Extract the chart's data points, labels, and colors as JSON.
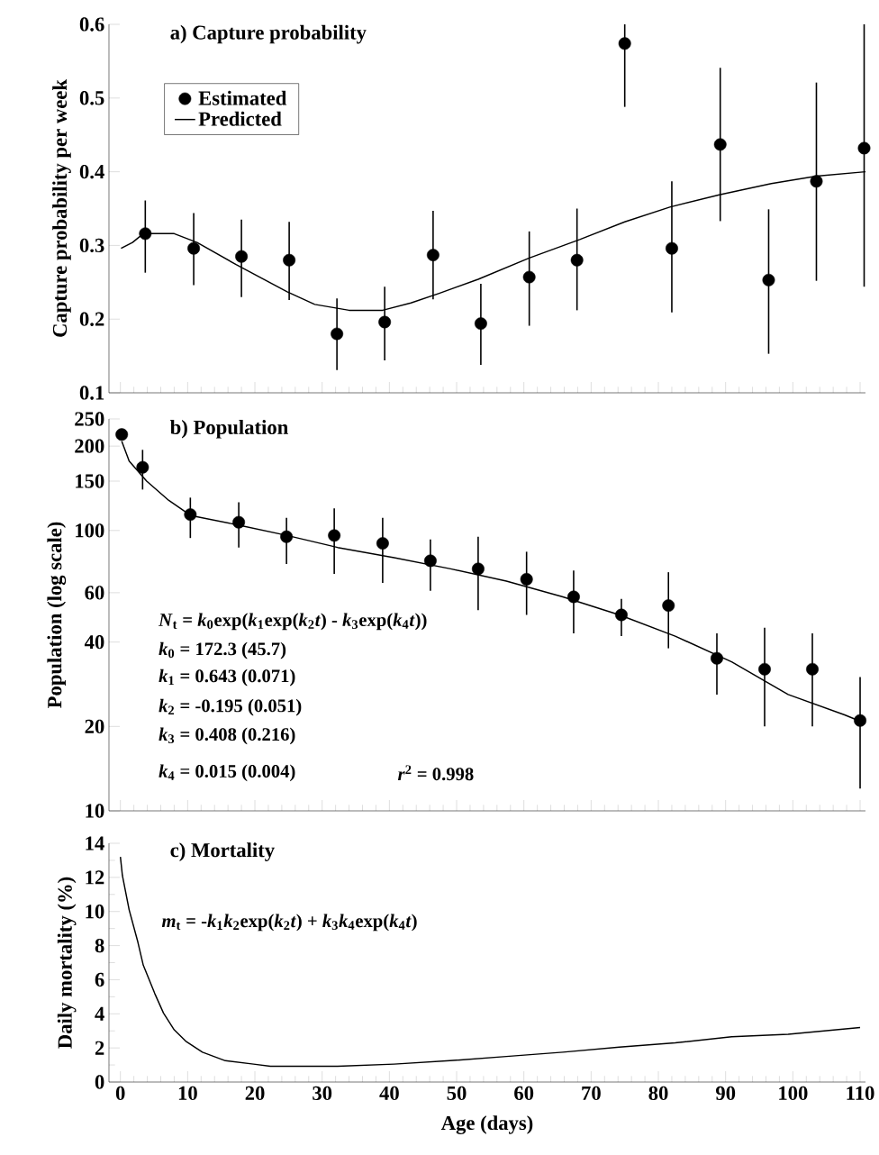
{
  "chart_data": [
    {
      "type": "scatter",
      "title": "a) Capture probability",
      "ylabel": "Capture probability per week",
      "xlim": [
        -1.7,
        110.8
      ],
      "xticks": [
        0,
        10,
        20,
        30,
        40,
        50,
        60,
        70,
        80,
        90,
        100,
        110
      ],
      "ylim": [
        0.1,
        0.6
      ],
      "yticks": [
        0.1,
        0.2,
        0.3,
        0.4,
        0.5,
        0.6
      ],
      "tick_labels": "y",
      "legend": "top left",
      "series": [
        {
          "name": "Estimated",
          "type": "scatter",
          "marker": "circle",
          "color": "#000000",
          "x": [
            3.7,
            10.9,
            18.0,
            25.1,
            32.2,
            39.3,
            46.5,
            53.6,
            60.8,
            67.9,
            75.0,
            82.0,
            89.2,
            96.4,
            103.5,
            110.6
          ],
          "values": [
            0.316,
            0.296,
            0.285,
            0.28,
            0.18,
            0.196,
            0.287,
            0.194,
            0.257,
            0.28,
            0.574,
            0.296,
            0.437,
            0.253,
            0.387,
            0.432
          ],
          "errors": [
            [
              0.263,
              0.361
            ],
            [
              0.246,
              0.344
            ],
            [
              0.23,
              0.335
            ],
            [
              0.226,
              0.332
            ],
            [
              0.131,
              0.228
            ],
            [
              0.144,
              0.244
            ],
            [
              0.227,
              0.347
            ],
            [
              0.138,
              0.248
            ],
            [
              0.191,
              0.319
            ],
            [
              0.212,
              0.35
            ],
            [
              0.488,
              0.6
            ],
            [
              0.209,
              0.387
            ],
            [
              0.333,
              0.541
            ],
            [
              0.153,
              0.349
            ],
            [
              0.252,
              0.521
            ],
            [
              0.244,
              0.6
            ]
          ]
        },
        {
          "name": "Predicted",
          "type": "line",
          "color": "#000000",
          "x": [
            0.1,
            1.8,
            3.4,
            8.0,
            11.4,
            17.2,
            24.8,
            28.9,
            34.0,
            39.0,
            43.2,
            47.4,
            53.2,
            60.8,
            68.3,
            75.0,
            81.7,
            89.2,
            96.8,
            103.5,
            110.8
          ],
          "values": [
            0.296,
            0.304,
            0.316,
            0.316,
            0.304,
            0.274,
            0.237,
            0.22,
            0.212,
            0.212,
            0.222,
            0.235,
            0.254,
            0.283,
            0.308,
            0.332,
            0.352,
            0.369,
            0.384,
            0.394,
            0.4
          ]
        }
      ]
    },
    {
      "type": "scatter",
      "title": "b) Population",
      "ylabel": "Population (log scale)",
      "log": "y",
      "xlim": [
        -1.7,
        110.8
      ],
      "xticks": [
        0,
        10,
        20,
        30,
        40,
        50,
        60,
        70,
        80,
        90,
        100,
        110
      ],
      "ylim": [
        10,
        250
      ],
      "yticks": [
        10,
        20,
        40,
        60,
        100,
        150,
        200,
        250
      ],
      "tick_labels": "y",
      "annotations": [
        "*N*$_{t}$ = *k*$_{0}$exp(*k*$_{1}$exp(*k*$_{2}$*t*) - *k*$_{3}$exp(*k*$_{4}$*t*))",
        "*k*$_{0}$ =  172.3 (45.7)",
        "*k*$_{1}$ =  0.643 (0.071)",
        "*k*$_{2}$ = -0.195 (0.051)",
        "*k*$_{3}$ =  0.408 (0.216)",
        "*k*$_{4}$ =  0.015 (0.004)",
        "*r*$^{2}$ = 0.998"
      ],
      "series": [
        {
          "type": "scatter",
          "marker": "circle",
          "color": "#000000",
          "x": [
            0.2,
            3.3,
            10.4,
            17.6,
            24.7,
            31.8,
            39.0,
            46.1,
            53.2,
            60.4,
            67.4,
            74.5,
            81.5,
            88.7,
            95.8,
            102.9,
            110.0
          ],
          "values": [
            220,
            168,
            114,
            107,
            95,
            96,
            90,
            78,
            73,
            67,
            58,
            50,
            54,
            35,
            32,
            32,
            21
          ],
          "errors": [
            null,
            [
              140,
              194
            ],
            [
              94,
              131
            ],
            [
              87,
              126
            ],
            [
              76,
              111
            ],
            [
              70,
              120
            ],
            [
              65,
              111
            ],
            [
              61,
              93
            ],
            [
              52,
              95
            ],
            [
              50,
              84
            ],
            [
              43,
              72
            ],
            [
              42,
              57
            ],
            [
              38,
              71
            ],
            [
              26,
              43
            ],
            [
              20,
              45
            ],
            [
              20,
              43
            ],
            [
              12,
              30
            ]
          ]
        },
        {
          "type": "line",
          "color": "#000000",
          "x": [
            0.2,
            1.3,
            3.9,
            7.2,
            10.5,
            17.2,
            24.8,
            32.3,
            40.7,
            49.1,
            57.4,
            65.8,
            74.2,
            82.5,
            90.9,
            99.3,
            107.7,
            110.8
          ],
          "values": [
            208,
            177,
            150,
            128,
            113,
            105,
            96,
            87,
            80,
            73,
            66,
            58,
            50,
            42,
            34,
            26,
            22,
            20.5
          ]
        }
      ]
    },
    {
      "type": "line",
      "title": "c) Mortality",
      "ylabel": "Daily mortality (%)",
      "xlabel": "Age (days)",
      "xlim": [
        -1.7,
        110.8
      ],
      "xticks": [
        0,
        10,
        20,
        30,
        40,
        50,
        60,
        70,
        80,
        90,
        100,
        110
      ],
      "ylim": [
        0,
        14
      ],
      "yticks": [
        0,
        2,
        4,
        6,
        8,
        10,
        12,
        14
      ],
      "annotations": [
        "*m*$_{t}$ = -*k*$_{1}$*k*$_{2}$exp(*k*$_{2}$*t*) + *k*$_{3}$*k*$_{4}$exp(*k*$_{4}$*t*)"
      ],
      "series": [
        {
          "type": "line",
          "color": "#000000",
          "x": [
            0,
            0.3,
            1.3,
            2.6,
            3.4,
            5.1,
            6.4,
            8.0,
            9.7,
            12.2,
            15.6,
            19.8,
            22.3,
            32.3,
            40.7,
            49.0,
            57.4,
            65.8,
            74.2,
            82.5,
            90.9,
            99.3,
            110.0
          ],
          "values": [
            13.2,
            12.1,
            10.1,
            8.2,
            6.85,
            5.2,
            4.05,
            3.06,
            2.4,
            1.75,
            1.25,
            1.05,
            0.92,
            0.92,
            1.05,
            1.25,
            1.5,
            1.75,
            2.05,
            2.3,
            2.65,
            2.8,
            3.2
          ]
        }
      ]
    }
  ]
}
